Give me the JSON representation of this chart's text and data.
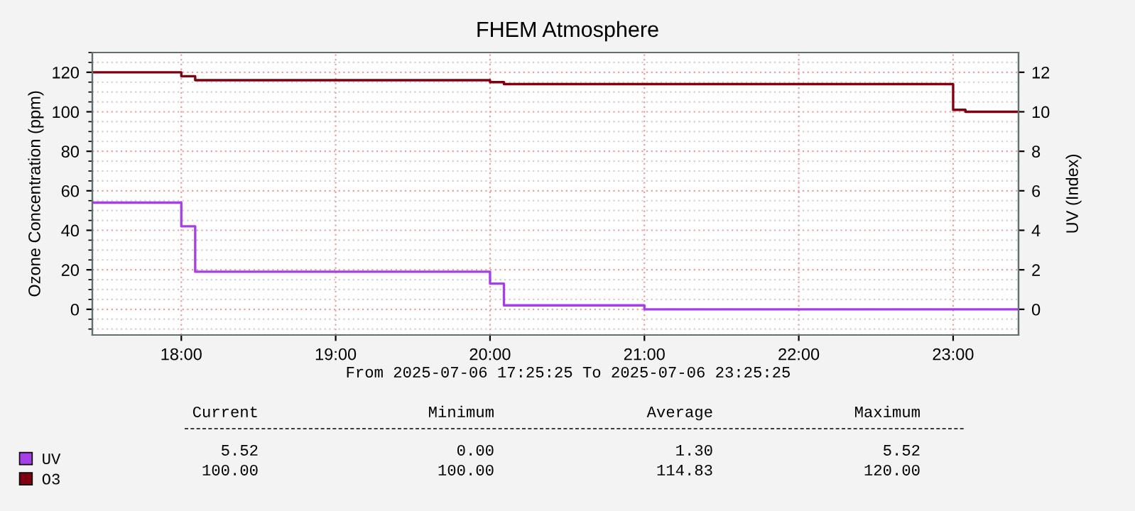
{
  "chart_data": {
    "type": "step",
    "title": "FHEM Atmosphere",
    "xlabel": "From 2025-07-06 17:25:25 To 2025-07-06 23:25:25",
    "ylabel": "Ozone Concentration (ppm)",
    "y2label": "UV (Index)",
    "series": [
      {
        "name": "UV",
        "color": "#a83ee8",
        "axis": "y2",
        "x": [
          17.4236,
          18.0,
          18.09,
          20.0,
          20.09,
          21.0,
          23.4236
        ],
        "values": [
          5.4,
          4.2,
          1.9,
          1.3,
          0.2,
          0,
          0
        ]
      },
      {
        "name": "O3",
        "color": "#800010",
        "x": [
          17.4236,
          18.0,
          18.09,
          20.0,
          20.09,
          23.0,
          23.08,
          23.4236
        ],
        "values": [
          120,
          118,
          116,
          115,
          114,
          101,
          100,
          100
        ]
      }
    ],
    "xlim": [
      17.4236,
      23.4236
    ],
    "xticks": [
      {
        "value": 18,
        "label": "18:00"
      },
      {
        "value": 19,
        "label": "19:00"
      },
      {
        "value": 20,
        "label": "20:00"
      },
      {
        "value": 21,
        "label": "21:00"
      },
      {
        "value": 22,
        "label": "22:00"
      },
      {
        "value": 23,
        "label": "23:00"
      }
    ],
    "ylim": [
      -13,
      130
    ],
    "yticks": [
      0,
      20,
      40,
      60,
      80,
      100,
      120
    ],
    "y2lim": [
      -1.3,
      13
    ],
    "y2ticks": [
      0,
      2,
      4,
      6,
      8,
      10,
      12
    ],
    "grid": true,
    "legend": "bottom left",
    "annotations": [
      "Current",
      "Minimum",
      "Average",
      "Maximum",
      "5.52",
      "0.00",
      "1.30",
      "5.52",
      "100.00",
      "100.00",
      "114.83",
      "120.00"
    ]
  }
}
